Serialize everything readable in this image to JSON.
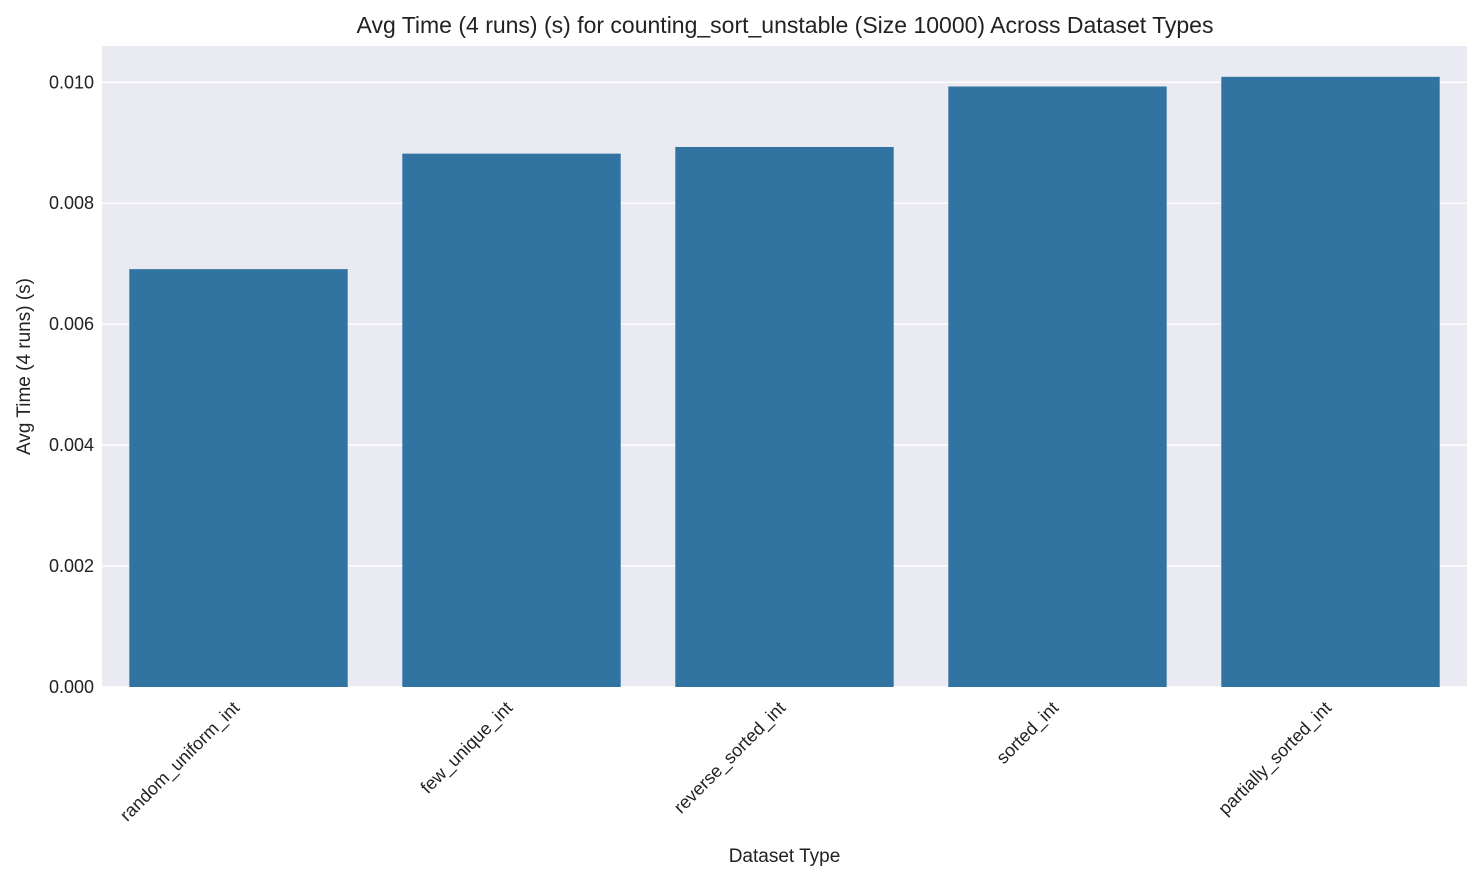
{
  "chart_data": {
    "type": "bar",
    "title": "Avg Time (4 runs) (s) for counting_sort_unstable (Size 10000) Across Dataset Types",
    "xlabel": "Dataset Type",
    "ylabel": "Avg Time (4 runs) (s)",
    "categories": [
      "random_uniform_int",
      "few_unique_int",
      "reverse_sorted_int",
      "sorted_int",
      "partially_sorted_int"
    ],
    "values": [
      0.00691,
      0.00882,
      0.00893,
      0.00993,
      0.01009
    ],
    "ylim": [
      0,
      0.0106
    ],
    "yticks": [
      "0.000",
      "0.002",
      "0.004",
      "0.006",
      "0.008",
      "0.010"
    ],
    "grid": true,
    "colors": {
      "bar": "#3274a1",
      "plot_background": "#eaeaf2",
      "grid": "#ffffff"
    }
  }
}
